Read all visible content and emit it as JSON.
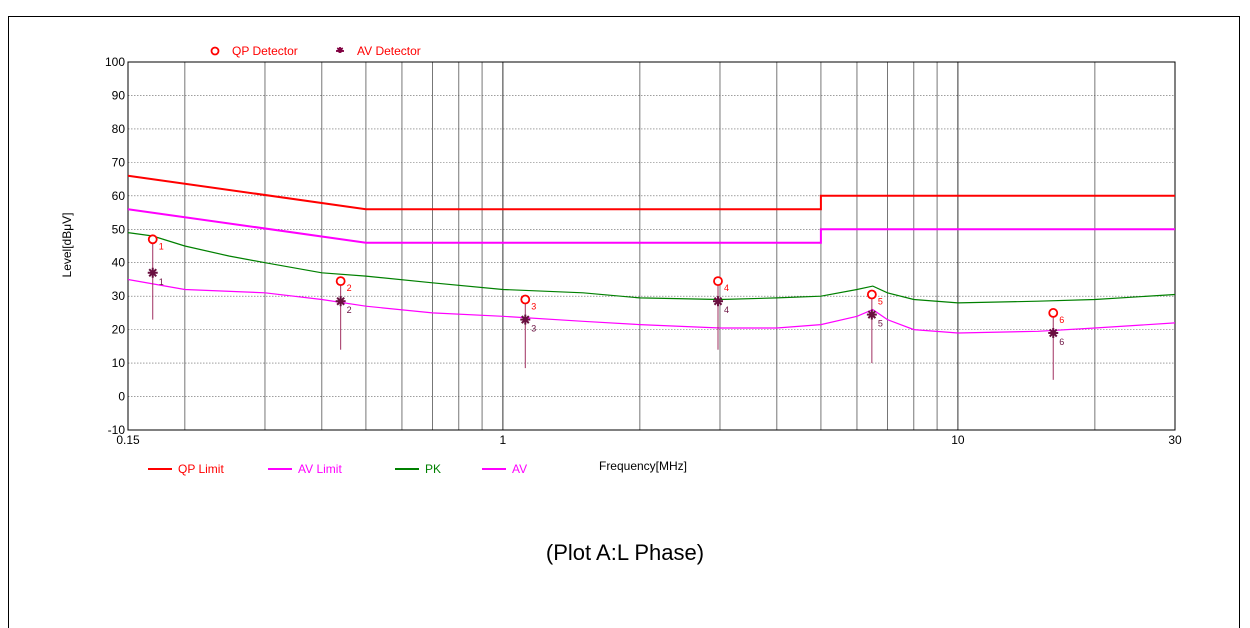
{
  "caption": "(Plot A:L Phase)",
  "chart_data": {
    "type": "line",
    "xlabel": "Frequency[MHz]",
    "ylabel": "Level[dBμV]",
    "x_scale": "log",
    "xlim": [
      0.15,
      30
    ],
    "ylim": [
      -10,
      100
    ],
    "grid": true,
    "x_ticks": [
      {
        "value": 0.15,
        "label": "0.15"
      },
      {
        "value": 1,
        "label": "1"
      },
      {
        "value": 10,
        "label": "10"
      },
      {
        "value": 30,
        "label": "30"
      }
    ],
    "y_ticks": [
      -10,
      0,
      10,
      20,
      30,
      40,
      50,
      60,
      70,
      80,
      90,
      100
    ],
    "top_legend": [
      {
        "name": "QP Detector",
        "marker": "circle",
        "color": "#ff0000"
      },
      {
        "name": "AV Detector",
        "marker": "star",
        "color": "#800040"
      }
    ],
    "bottom_legend": [
      {
        "name": "QP Limit",
        "color": "#ff0000"
      },
      {
        "name": "AV Limit",
        "color": "#ff00ff"
      },
      {
        "name": "PK",
        "color": "#008000"
      },
      {
        "name": "AV",
        "color": "#ff00ff"
      }
    ],
    "series": [
      {
        "name": "QP Limit",
        "color": "#ff0000",
        "points": [
          [
            0.15,
            66
          ],
          [
            0.5,
            56
          ],
          [
            5,
            56
          ],
          [
            5,
            60
          ],
          [
            30,
            60
          ]
        ]
      },
      {
        "name": "AV Limit",
        "color": "#ff00ff",
        "points": [
          [
            0.15,
            56
          ],
          [
            0.5,
            46
          ],
          [
            5,
            46
          ],
          [
            5,
            50
          ],
          [
            30,
            50
          ]
        ]
      },
      {
        "name": "PK",
        "color": "#008000",
        "points": [
          [
            0.15,
            49
          ],
          [
            0.17,
            48
          ],
          [
            0.2,
            45
          ],
          [
            0.25,
            42
          ],
          [
            0.3,
            40
          ],
          [
            0.4,
            37
          ],
          [
            0.5,
            36
          ],
          [
            0.7,
            34
          ],
          [
            1,
            32
          ],
          [
            1.5,
            31
          ],
          [
            2,
            29.5
          ],
          [
            3,
            29
          ],
          [
            4,
            29.5
          ],
          [
            5,
            30
          ],
          [
            6,
            32
          ],
          [
            6.5,
            33
          ],
          [
            7,
            31
          ],
          [
            8,
            29
          ],
          [
            10,
            28
          ],
          [
            15,
            28.5
          ],
          [
            20,
            29
          ],
          [
            30,
            30.5
          ]
        ]
      },
      {
        "name": "AV",
        "color": "#ff00ff",
        "points": [
          [
            0.15,
            35
          ],
          [
            0.2,
            32
          ],
          [
            0.3,
            31
          ],
          [
            0.4,
            29
          ],
          [
            0.5,
            27
          ],
          [
            0.7,
            25
          ],
          [
            1,
            24
          ],
          [
            1.5,
            22.5
          ],
          [
            2,
            21.5
          ],
          [
            3,
            20.5
          ],
          [
            4,
            20.5
          ],
          [
            5,
            21.5
          ],
          [
            6,
            24
          ],
          [
            6.5,
            26
          ],
          [
            7,
            23
          ],
          [
            8,
            20
          ],
          [
            10,
            19
          ],
          [
            15,
            19.5
          ],
          [
            20,
            20.5
          ],
          [
            30,
            22
          ]
        ]
      }
    ],
    "qp_detector": [
      {
        "label": "1",
        "x": 0.17,
        "y": 47
      },
      {
        "label": "2",
        "x": 0.44,
        "y": 34.5
      },
      {
        "label": "3",
        "x": 1.12,
        "y": 29
      },
      {
        "label": "4",
        "x": 2.97,
        "y": 34.5
      },
      {
        "label": "5",
        "x": 6.47,
        "y": 30.5
      },
      {
        "label": "6",
        "x": 16.2,
        "y": 25
      }
    ],
    "av_detector": [
      {
        "label": "1",
        "x": 0.17,
        "y": 37
      },
      {
        "label": "2",
        "x": 0.44,
        "y": 28.5
      },
      {
        "label": "3",
        "x": 1.12,
        "y": 23
      },
      {
        "label": "4",
        "x": 2.97,
        "y": 28.5
      },
      {
        "label": "5",
        "x": 6.47,
        "y": 24.5
      },
      {
        "label": "6",
        "x": 16.2,
        "y": 19
      }
    ],
    "marker_stems": [
      {
        "x": 0.17,
        "y": 23
      },
      {
        "x": 0.44,
        "y": 14
      },
      {
        "x": 1.12,
        "y": 8.5
      },
      {
        "x": 2.97,
        "y": 14
      },
      {
        "x": 6.47,
        "y": 10
      },
      {
        "x": 16.2,
        "y": 5
      }
    ]
  }
}
